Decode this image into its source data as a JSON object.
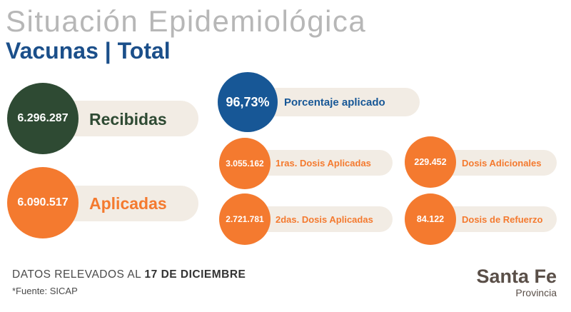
{
  "header": {
    "title": "Situación Epidemiológica",
    "subtitle": "Vacunas | Total"
  },
  "main": {
    "recibidas": {
      "value": "6.296.287",
      "label": "Recibidas"
    },
    "aplicadas": {
      "value": "6.090.517",
      "label": "Aplicadas"
    },
    "porcentaje": {
      "value": "96,73%",
      "label": "Porcentaje aplicado"
    },
    "primeras": {
      "value": "3.055.162",
      "label": "1ras. Dosis Aplicadas"
    },
    "segundas": {
      "value": "2.721.781",
      "label": "2das. Dosis Aplicadas"
    },
    "adicionales": {
      "value": "229.452",
      "label": "Dosis Adicionales"
    },
    "refuerzo": {
      "value": "84.122",
      "label": "Dosis de Refuerzo"
    }
  },
  "footer": {
    "datos_prefix": "DATOS RELEVADOS AL",
    "datos_fecha": "17 DE DICIEMBRE",
    "fuente": "*Fuente: SICAP"
  },
  "logo": {
    "main": "Santa Fe",
    "sub": "Provincia"
  },
  "colors": {
    "green": "#2e4a33",
    "orange": "#f47a2f",
    "blue": "#175796",
    "pill_bg": "#f2ece4",
    "title_gray": "#b7b7b7"
  }
}
